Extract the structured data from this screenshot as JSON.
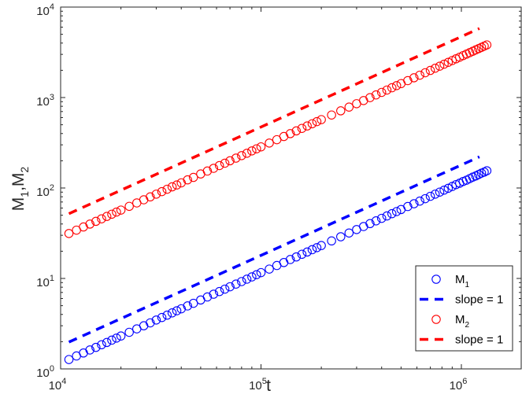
{
  "chart_data": {
    "type": "scatter",
    "title": "",
    "xlabel": "t",
    "ylabel": "M1,M2",
    "xscale": "log",
    "yscale": "log",
    "xlim": [
      10000,
      2200000
    ],
    "ylim": [
      1,
      10000
    ],
    "x_ticks": [
      {
        "base": "10",
        "exp": "4",
        "value": 10000
      },
      {
        "base": "10",
        "exp": "5",
        "value": 100000
      },
      {
        "base": "10",
        "exp": "6",
        "value": 1000000
      }
    ],
    "y_ticks": [
      {
        "base": "10",
        "exp": "0",
        "value": 1
      },
      {
        "base": "10",
        "exp": "1",
        "value": 10
      },
      {
        "base": "10",
        "exp": "2",
        "value": 100
      },
      {
        "base": "10",
        "exp": "3",
        "value": 1000
      },
      {
        "base": "10",
        "exp": "4",
        "value": 10000
      }
    ],
    "grid": false,
    "legend_position": "bottom-right",
    "t_values": [
      11000,
      12000,
      13000,
      14000,
      15000,
      16000,
      17000,
      18000,
      19000,
      20000,
      22000,
      24000,
      26000,
      28000,
      30000,
      32000,
      34000,
      36000,
      38000,
      40000,
      43000,
      46000,
      50000,
      54000,
      58000,
      62000,
      66000,
      70000,
      75000,
      80000,
      85000,
      90000,
      95000,
      100000,
      110000,
      120000,
      130000,
      140000,
      150000,
      160000,
      170000,
      180000,
      190000,
      200000,
      225000,
      250000,
      275000,
      300000,
      325000,
      350000,
      375000,
      400000,
      425000,
      450000,
      475000,
      500000,
      540000,
      580000,
      620000,
      660000,
      700000,
      740000,
      780000,
      820000,
      860000,
      900000,
      940000,
      980000,
      1020000,
      1060000,
      1100000,
      1140000,
      1180000,
      1220000,
      1260000,
      1300000,
      1340000
    ],
    "series": [
      {
        "name": "M",
        "sub": "1",
        "kind": "markers",
        "color": "#0000ff",
        "values": [
          1.27,
          1.39,
          1.5,
          1.62,
          1.73,
          1.85,
          1.96,
          2.08,
          2.19,
          2.31,
          2.54,
          2.77,
          3.0,
          3.23,
          3.47,
          3.7,
          3.93,
          4.16,
          4.39,
          4.62,
          4.97,
          5.31,
          5.78,
          6.24,
          6.7,
          7.16,
          7.62,
          8.09,
          8.66,
          9.24,
          9.82,
          10.4,
          11.0,
          11.6,
          12.7,
          13.9,
          15.0,
          16.2,
          17.3,
          18.5,
          19.6,
          20.8,
          21.9,
          23.1,
          26.0,
          28.9,
          31.8,
          34.7,
          37.5,
          40.4,
          43.3,
          46.2,
          49.1,
          52.0,
          54.9,
          57.8,
          62.4,
          67.0,
          71.6,
          76.2,
          80.9,
          85.5,
          90.1,
          94.7,
          99.3,
          104,
          109,
          113,
          118,
          122,
          127,
          132,
          136,
          141,
          146,
          150,
          155
        ]
      },
      {
        "name": "slope = 1",
        "kind": "dashed",
        "color": "#0000ff",
        "t": [
          11000,
          1230000
        ],
        "values": [
          1.98,
          221
        ]
      },
      {
        "name": "M",
        "sub": "2",
        "kind": "markers",
        "color": "#ff0000",
        "values": [
          31.4,
          34.2,
          37.1,
          39.9,
          42.8,
          45.6,
          48.5,
          51.3,
          54.2,
          57.0,
          62.7,
          68.4,
          74.1,
          79.8,
          85.5,
          91.2,
          96.9,
          103,
          108,
          114,
          123,
          131,
          143,
          154,
          165,
          177,
          188,
          200,
          214,
          228,
          242,
          257,
          271,
          285,
          314,
          342,
          371,
          399,
          428,
          456,
          485,
          513,
          542,
          570,
          641,
          713,
          784,
          855,
          926,
          998,
          1069,
          1140,
          1211,
          1283,
          1354,
          1425,
          1539,
          1653,
          1767,
          1881,
          1995,
          2109,
          2223,
          2337,
          2451,
          2565,
          2679,
          2793,
          2907,
          3021,
          3135,
          3249,
          3363,
          3477,
          3591,
          3705,
          3819
        ]
      },
      {
        "name": "slope = 1",
        "kind": "dashed",
        "color": "#ff0000",
        "t": [
          11000,
          1230000
        ],
        "values": [
          52,
          5800
        ]
      }
    ]
  }
}
